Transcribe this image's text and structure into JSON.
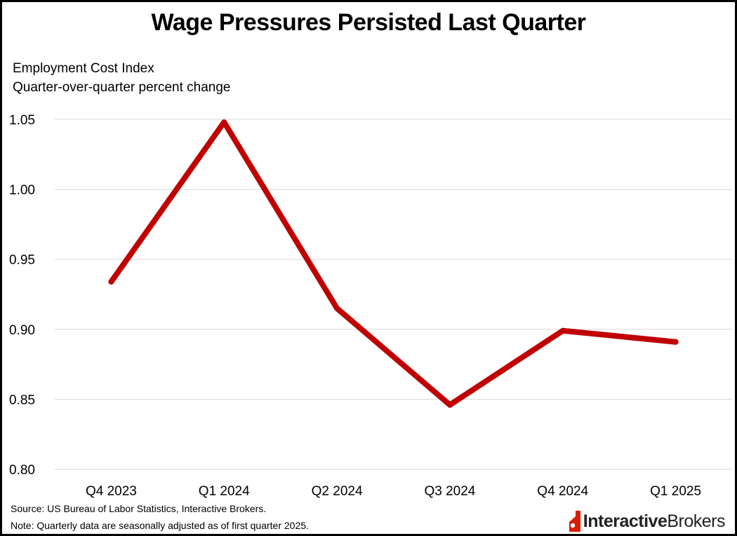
{
  "chart_data": {
    "type": "line",
    "title": "Wage Pressures Persisted Last Quarter",
    "subtitle_lines": [
      "Employment Cost Index",
      "Quarter-over-quarter percent change"
    ],
    "categories": [
      "Q4 2023",
      "Q1 2024",
      "Q2 2024",
      "Q3 2024",
      "Q4 2024",
      "Q1 2025"
    ],
    "series": [
      {
        "values": [
          0.934,
          1.048,
          0.915,
          0.846,
          0.899,
          0.891
        ],
        "color": "#c00000"
      }
    ],
    "ylim": [
      0.8,
      1.05
    ],
    "yticks": [
      "0.80",
      "0.85",
      "0.90",
      "0.95",
      "1.00",
      "1.05"
    ],
    "grid": true,
    "legend": "none"
  },
  "footer": {
    "source": "Source:  US Bureau of Labor Statistics, Interactive Brokers.",
    "note": "Note: Quarterly data are seasonally adjusted as of first quarter 2025."
  },
  "logo": {
    "part1": "Interactive",
    "part2": "Brokers",
    "color": "#d81e05"
  }
}
